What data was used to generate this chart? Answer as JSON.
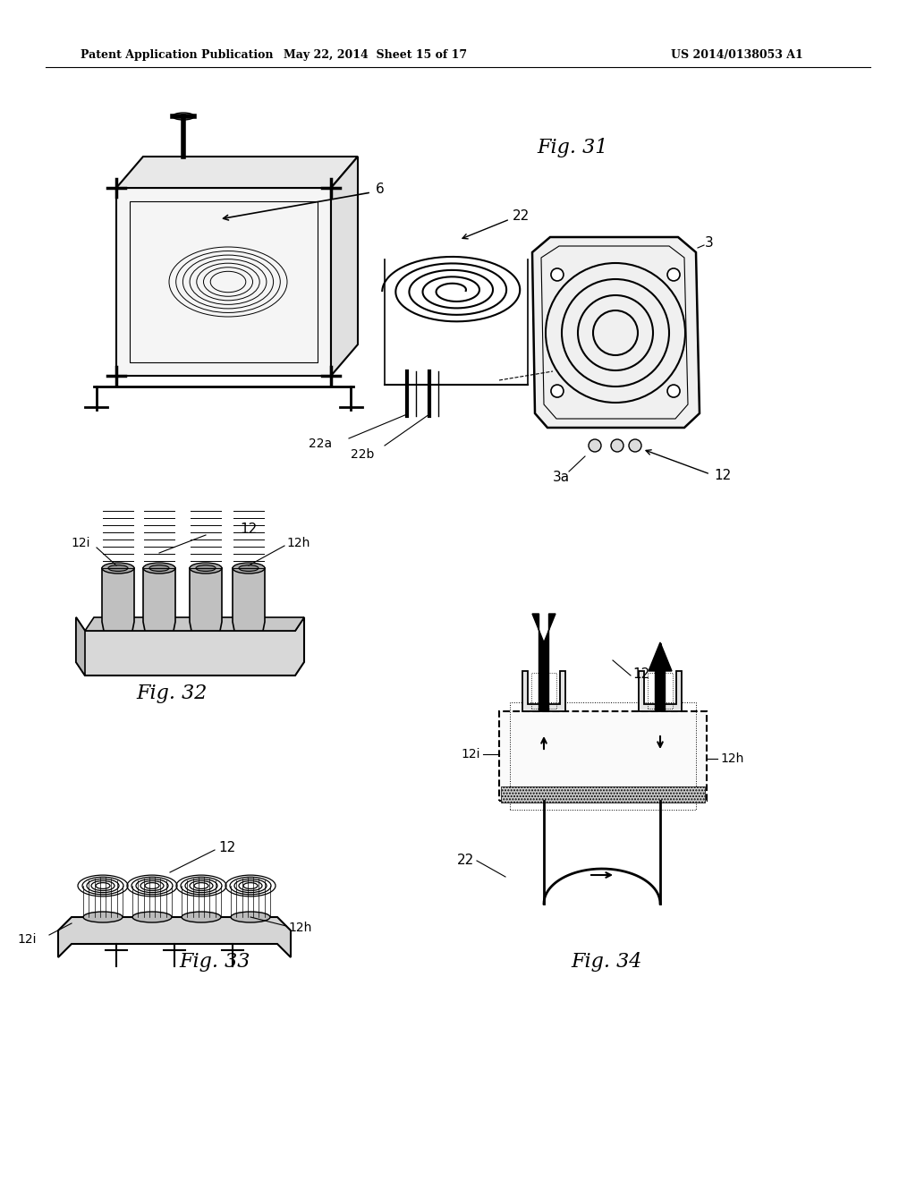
{
  "bg_color": "#ffffff",
  "header_left": "Patent Application Publication",
  "header_mid": "May 22, 2014  Sheet 15 of 17",
  "header_right": "US 2014/0138053 A1",
  "fig31_label": "Fig. 31",
  "fig32_label": "Fig. 32",
  "fig33_label": "Fig. 33",
  "fig34_label": "Fig. 34",
  "text_color": "#000000",
  "line_color": "#000000"
}
